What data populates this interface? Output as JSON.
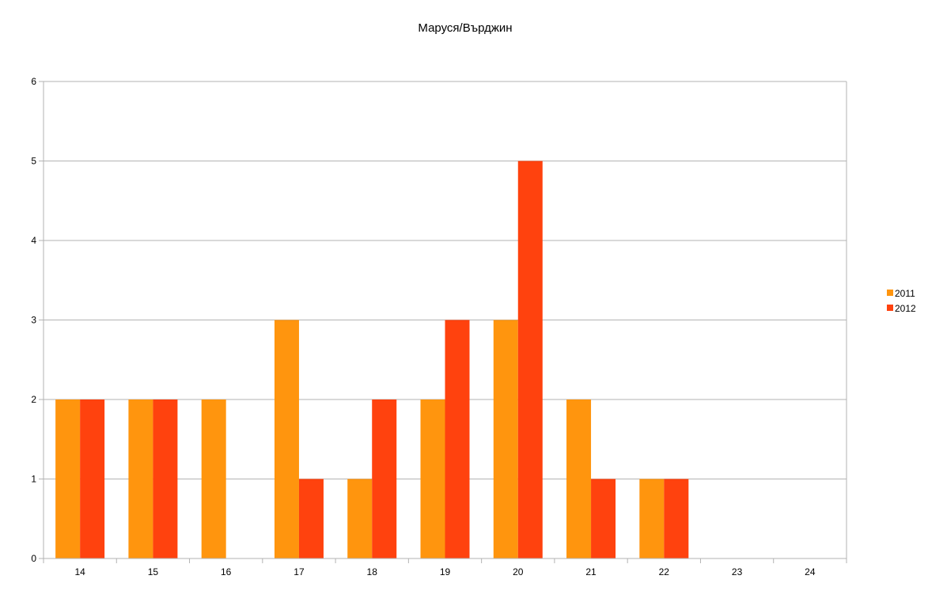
{
  "chart_data": {
    "type": "bar",
    "title": "Маруся/Върджин",
    "xlabel": "",
    "ylabel": "",
    "categories": [
      "14",
      "15",
      "16",
      "17",
      "18",
      "19",
      "20",
      "21",
      "22",
      "23",
      "24"
    ],
    "series": [
      {
        "name": "2011",
        "color": "#ff950e",
        "values": [
          2,
          2,
          2,
          3,
          1,
          2,
          3,
          2,
          1,
          0,
          0
        ]
      },
      {
        "name": "2012",
        "color": "#ff420e",
        "values": [
          2,
          2,
          0,
          1,
          2,
          3,
          5,
          1,
          1,
          0,
          0
        ]
      }
    ],
    "ylim": [
      0,
      6
    ],
    "yticks": [
      "0",
      "1",
      "2",
      "3",
      "4",
      "5",
      "6"
    ],
    "grid": true,
    "legend_position": "right"
  }
}
